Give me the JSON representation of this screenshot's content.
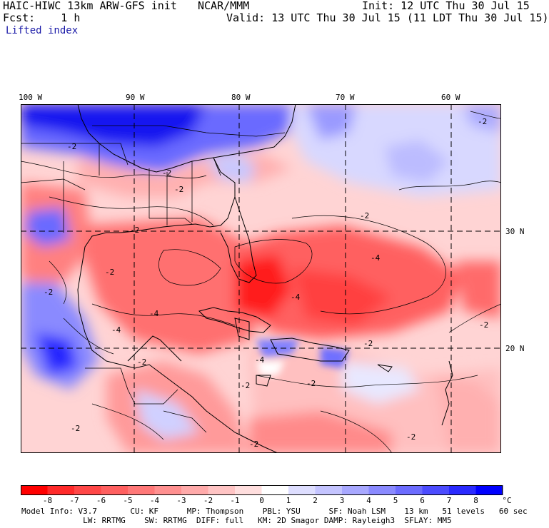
{
  "header": {
    "model": "HAIC-HIWC 13km ARW-GFS init",
    "org": "NCAR/MMM",
    "init": "Init: 12 UTC Thu 30 Jul 15",
    "fcst": "Fcst:    1 h",
    "valid": "Valid: 13 UTC Thu 30 Jul 15 (11 LDT Thu 30 Jul 15)",
    "field": "Lifted index"
  },
  "map": {
    "lon_labels": [
      "100 W",
      "90 W",
      "80 W",
      "70 W",
      "60 W"
    ],
    "lat_labels": [
      "30 N",
      "20 N"
    ],
    "contour_labels": [
      "-2",
      "-2",
      "-2",
      "-2",
      "-2",
      "-2",
      "-2",
      "-2",
      "-2",
      "-4",
      "-4",
      "-4",
      "-4",
      "-4",
      "-2",
      "-2",
      "-2",
      "-2",
      "-2",
      "-2",
      "-2"
    ]
  },
  "colorbar": {
    "labels": [
      "-8",
      "-7",
      "-6",
      "-5",
      "-4",
      "-3",
      "-2",
      "-1",
      "0",
      "1",
      "2",
      "3",
      "4",
      "5",
      "6",
      "7",
      "8"
    ],
    "unit": "°C",
    "colors": [
      "#ff0000",
      "#ff2a2a",
      "#ff4747",
      "#ff6060",
      "#ff7878",
      "#ff9090",
      "#ffaaaa",
      "#ffc4c4",
      "#ffdede",
      "#ffffff",
      "#dedeff",
      "#c4c4ff",
      "#a8a8ff",
      "#8a8aff",
      "#6c6cff",
      "#4c4cff",
      "#2a2aff",
      "#0000ff"
    ]
  },
  "model_info": {
    "line1": "Model Info: V3.7       CU: KF      MP: Thompson    PBL: YSU      SF: Noah LSM    13 km   51 levels   60 sec",
    "line2": "             LW: RRTMG    SW: RRTMG  DIFF: full   KM: 2D Smagor DAMP: Rayleigh3  SFLAY: MM5"
  }
}
